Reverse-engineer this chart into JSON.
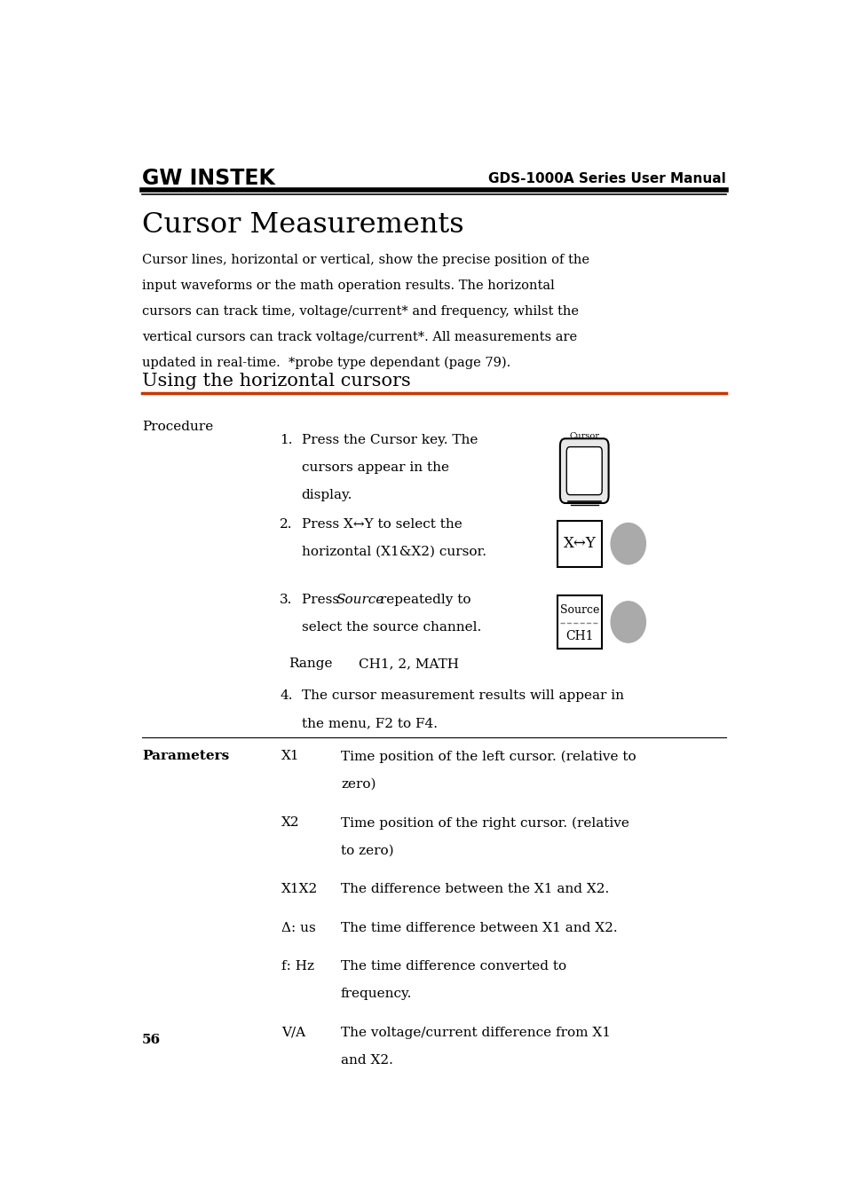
{
  "page_bg": "#ffffff",
  "header_logo_text": "GW INSTEK",
  "header_right_text": "GDS-1000A Series User Manual",
  "title": "Cursor Measurements",
  "intro_text": "Cursor lines, horizontal or vertical, show the precise position of the\ninput waveforms or the math operation results. The horizontal\ncursors can track time, voltage/current* and frequency, whilst the\nvertical cursors can track voltage/current*. All measurements are\nupdated in real-time.  *probe type dependant (page 79).",
  "section_title": "Using the horizontal cursors",
  "orange_line_color": "#cc3300",
  "black_line_color": "#000000",
  "procedure_label": "Procedure",
  "parameters_label": "Parameters",
  "parameters": [
    {
      "label": "X1",
      "desc": "Time position of the left cursor. (relative to\nzero)"
    },
    {
      "label": "X2",
      "desc": "Time position of the right cursor. (relative\nto zero)"
    },
    {
      "label": "X1X2",
      "desc": "The difference between the X1 and X2."
    },
    {
      "label": "Δ: us",
      "desc": "The time difference between X1 and X2."
    },
    {
      "label": "f: Hz",
      "desc": "The time difference converted to\nfrequency."
    },
    {
      "label": "V/A",
      "desc": "The voltage/current difference from X1\nand X2."
    }
  ],
  "page_number": "56",
  "lm": 0.055,
  "rm": 0.945,
  "sl": 0.265
}
